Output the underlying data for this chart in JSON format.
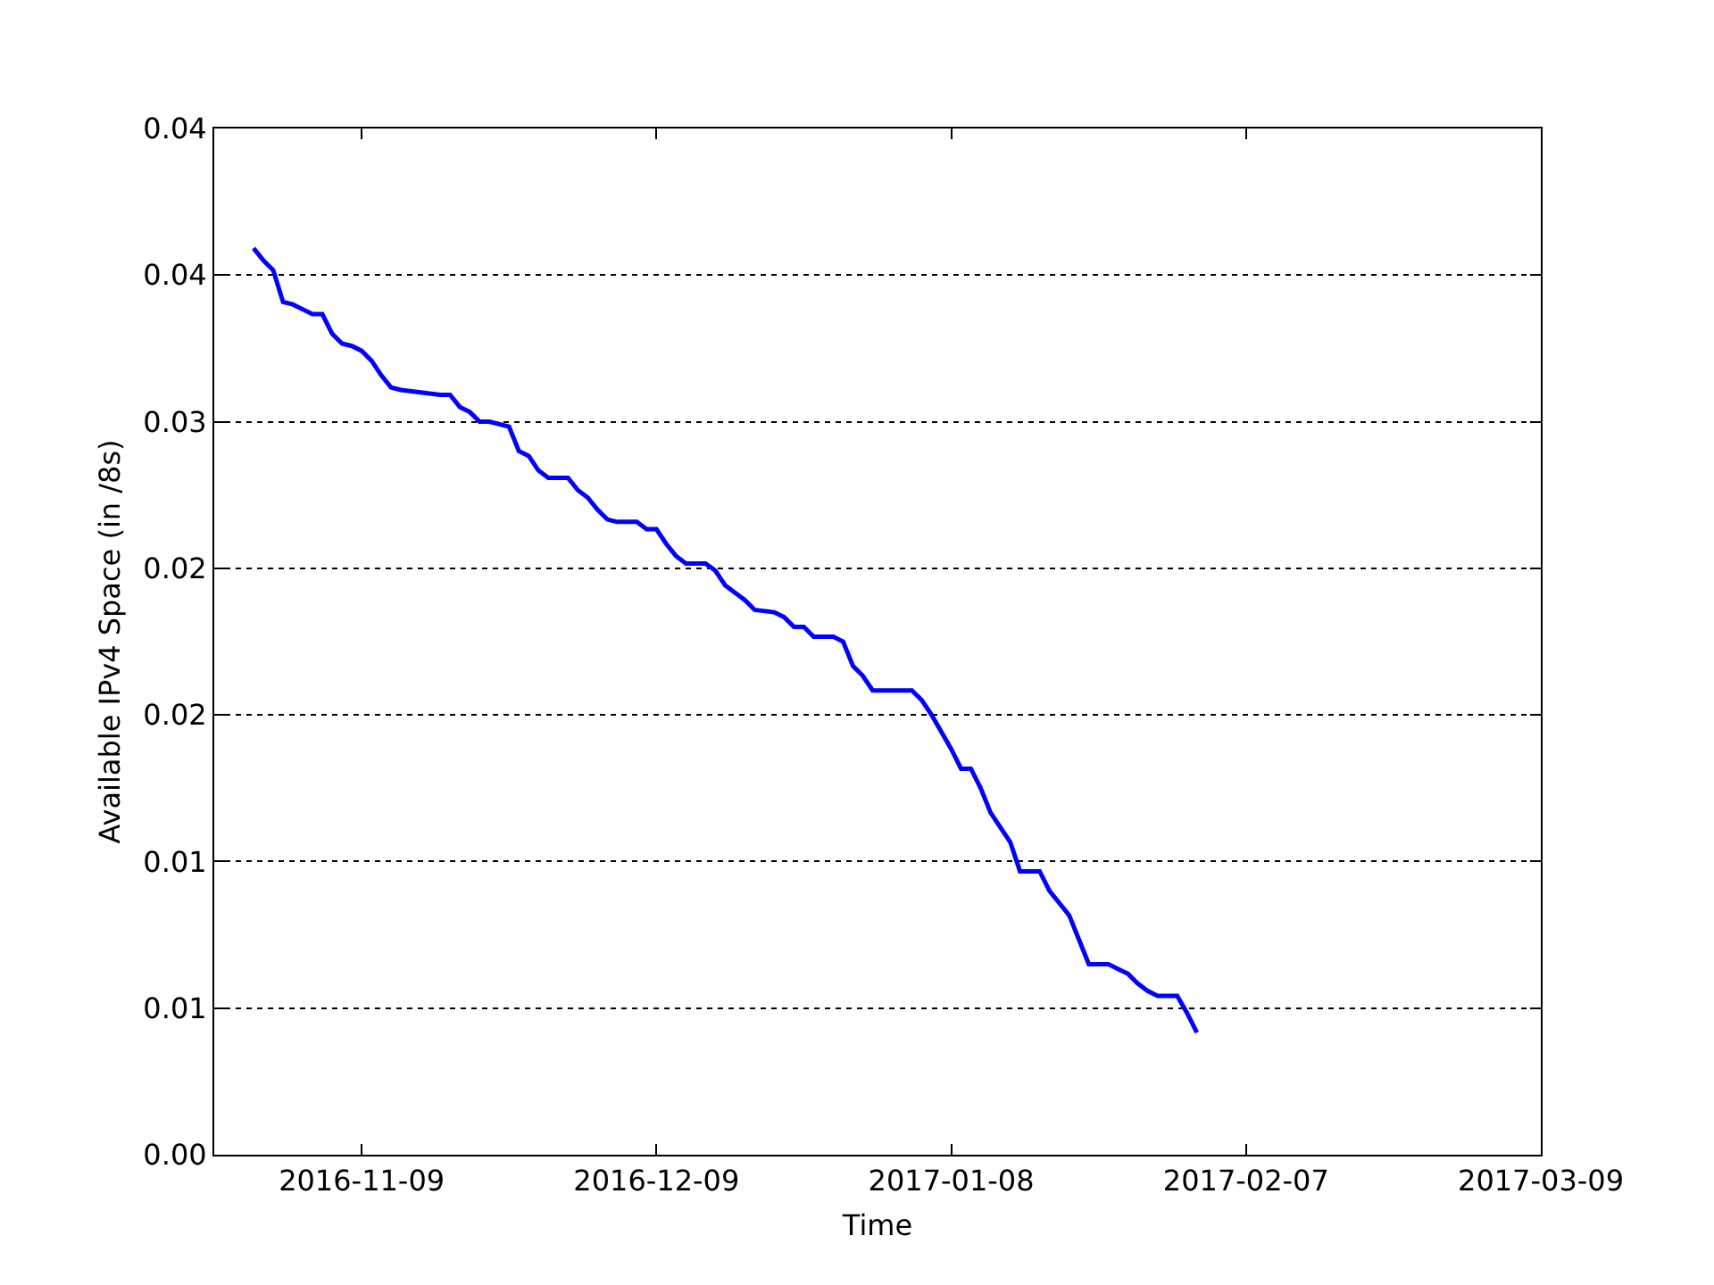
{
  "chart_data": {
    "type": "line",
    "xlabel": "Time",
    "ylabel": "Available IPv4 Space (in /8s)",
    "x": [
      "2016-10-29",
      "2016-10-30",
      "2016-10-31",
      "2016-11-01",
      "2016-11-02",
      "2016-11-03",
      "2016-11-04",
      "2016-11-05",
      "2016-11-06",
      "2016-11-07",
      "2016-11-08",
      "2016-11-09",
      "2016-11-10",
      "2016-11-11",
      "2016-11-12",
      "2016-11-13",
      "2016-11-15",
      "2016-11-17",
      "2016-11-18",
      "2016-11-19",
      "2016-11-20",
      "2016-11-21",
      "2016-11-22",
      "2016-11-24",
      "2016-11-25",
      "2016-11-26",
      "2016-11-27",
      "2016-11-28",
      "2016-11-30",
      "2016-12-01",
      "2016-12-02",
      "2016-12-03",
      "2016-12-04",
      "2016-12-05",
      "2016-12-07",
      "2016-12-08",
      "2016-12-09",
      "2016-12-10",
      "2016-12-11",
      "2016-12-12",
      "2016-12-14",
      "2016-12-15",
      "2016-12-16",
      "2016-12-17",
      "2016-12-18",
      "2016-12-19",
      "2016-12-21",
      "2016-12-22",
      "2016-12-23",
      "2016-12-24",
      "2016-12-25",
      "2016-12-27",
      "2016-12-28",
      "2016-12-29",
      "2016-12-30",
      "2016-12-31",
      "2017-01-02",
      "2017-01-04",
      "2017-01-05",
      "2017-01-06",
      "2017-01-07",
      "2017-01-08",
      "2017-01-09",
      "2017-01-10",
      "2017-01-11",
      "2017-01-12",
      "2017-01-13",
      "2017-01-14",
      "2017-01-15",
      "2017-01-17",
      "2017-01-18",
      "2017-01-19",
      "2017-01-20",
      "2017-01-21",
      "2017-01-22",
      "2017-01-24",
      "2017-01-25",
      "2017-01-26",
      "2017-01-27",
      "2017-01-28",
      "2017-01-29",
      "2017-01-31",
      "2017-02-01",
      "2017-02-02"
    ],
    "series": [
      {
        "color": "#0000ff",
        "values": [
          0.0371,
          0.0366,
          0.0362,
          0.0349,
          0.0348,
          0.0346,
          0.0344,
          0.0344,
          0.0336,
          0.0332,
          0.0331,
          0.0329,
          0.0325,
          0.0319,
          0.0314,
          0.0313,
          0.0312,
          0.0311,
          0.0311,
          0.0306,
          0.0304,
          0.03,
          0.03,
          0.0298,
          0.0288,
          0.0286,
          0.028,
          0.0277,
          0.0277,
          0.0272,
          0.0269,
          0.0264,
          0.026,
          0.0259,
          0.0259,
          0.0256,
          0.0256,
          0.025,
          0.0245,
          0.0242,
          0.0242,
          0.0239,
          0.0233,
          0.023,
          0.0227,
          0.0223,
          0.0222,
          0.022,
          0.0216,
          0.0216,
          0.0212,
          0.0212,
          0.021,
          0.02,
          0.0196,
          0.019,
          0.019,
          0.019,
          0.0186,
          0.018,
          0.0173,
          0.0166,
          0.0158,
          0.0158,
          0.015,
          0.014,
          0.0134,
          0.0128,
          0.0116,
          0.0116,
          0.0108,
          0.0103,
          0.0098,
          0.0088,
          0.0078,
          0.0078,
          0.0076,
          0.0074,
          0.007,
          0.0067,
          0.0065,
          0.0065,
          0.0058,
          0.005
        ]
      }
    ],
    "xlim": [
      "2016-10-25",
      "2017-03-09"
    ],
    "xticks": [
      "2016-11-09",
      "2016-12-09",
      "2017-01-08",
      "2017-02-07",
      "2017-03-09"
    ],
    "ylim": [
      0,
      0.042
    ],
    "yticks": [
      {
        "value": 0,
        "label": "0.00"
      },
      {
        "value": 0.006,
        "label": "0.01"
      },
      {
        "value": 0.012,
        "label": "0.01"
      },
      {
        "value": 0.018,
        "label": "0.02"
      },
      {
        "value": 0.024,
        "label": "0.02"
      },
      {
        "value": 0.03,
        "label": "0.03"
      },
      {
        "value": 0.036,
        "label": "0.04"
      },
      {
        "value": 0.042,
        "label": "0.04"
      }
    ],
    "grid": "y",
    "marker": "none",
    "line_style": "solid"
  }
}
